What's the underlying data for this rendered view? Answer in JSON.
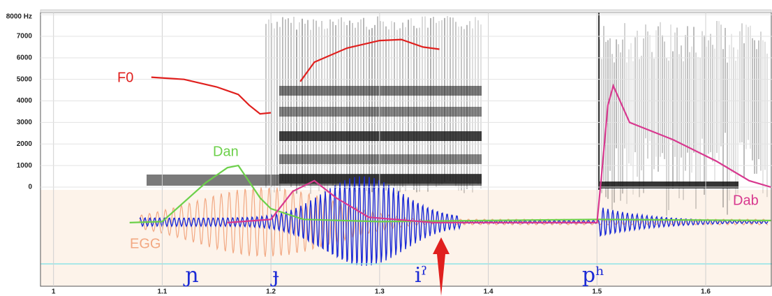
{
  "chart_data": {
    "type": "spectrogram",
    "xlim": [
      0.988,
      1.661
    ],
    "xticks": [
      1,
      1.1,
      1.2,
      1.3,
      1.4,
      1.5,
      1.6
    ],
    "ylim": [
      -4600,
      8100
    ],
    "yticks": [
      0,
      1000,
      2000,
      3000,
      4000,
      5000,
      6000,
      7000,
      {
        "value": 8000,
        "label": "8000 Hz"
      }
    ],
    "grid": true,
    "series": [
      {
        "name": "F0",
        "color": "#e0201e",
        "x": [
          1.09,
          1.12,
          1.15,
          1.17,
          1.18,
          1.19,
          1.2,
          1.21,
          1.227,
          1.24,
          1.27,
          1.3,
          1.32,
          1.34,
          1.355
        ],
        "values": [
          5100,
          5000,
          4650,
          4300,
          3800,
          3400,
          3450,
          null,
          4900,
          5800,
          6450,
          6800,
          6850,
          6500,
          6400
        ]
      },
      {
        "name": "Dan",
        "color": "#6cd04a",
        "x": [
          1.07,
          1.1,
          1.12,
          1.14,
          1.16,
          1.17,
          1.19,
          1.2,
          1.23,
          1.3,
          1.5,
          1.66
        ],
        "values": [
          -1650,
          -1600,
          -700,
          200,
          900,
          1000,
          -500,
          -1000,
          -1500,
          -1600,
          -1500,
          -1550
        ]
      },
      {
        "name": "Dab",
        "color": "#d8388f",
        "x": [
          1.16,
          1.2,
          1.22,
          1.24,
          1.26,
          1.29,
          1.35,
          1.5,
          1.505,
          1.51,
          1.515,
          1.53,
          1.57,
          1.61,
          1.64,
          1.66
        ],
        "values": [
          -1650,
          -1500,
          -200,
          300,
          -500,
          -1400,
          -1650,
          -1650,
          1000,
          3800,
          4700,
          3000,
          2200,
          1200,
          300,
          0
        ]
      }
    ],
    "annotations": {
      "egg": "EGG",
      "segments": [
        "ɲ",
        "ɟ",
        "iˀ",
        "pʰ"
      ]
    }
  }
}
